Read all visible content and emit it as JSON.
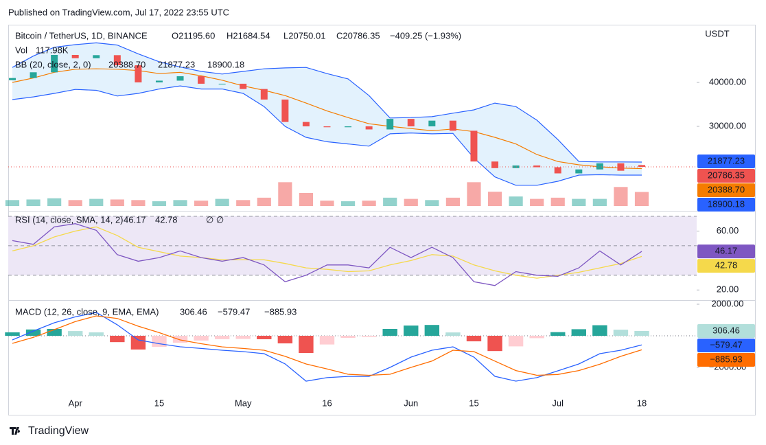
{
  "header": "Published on TradingView.com, Jul 17, 2022 23:55 UTC",
  "footer": "TradingView",
  "chart_data": [
    {
      "type": "candlestick",
      "title": "Bitcoin / TetherUS, 1D, BINANCE",
      "ohlc_legend": [
        "O21195.60",
        "H21684.54",
        "L20750.01",
        "C20786.35",
        "−409.25 (−1.93%)"
      ],
      "unit": "USDT",
      "categories": [
        null,
        null,
        null,
        "Apr",
        null,
        null,
        null,
        "15",
        null,
        null,
        null,
        "May",
        null,
        null,
        null,
        "16",
        null,
        null,
        null,
        "Jun",
        null,
        null,
        "15",
        null,
        null,
        null,
        "Jul",
        null,
        null,
        null,
        "18"
      ],
      "open": [
        40500,
        41000,
        42300,
        46250,
        45500,
        46200,
        43900,
        40000,
        40400,
        41400,
        39700,
        39700,
        38500,
        36100,
        31000,
        30000,
        29800,
        30000,
        29300,
        31700,
        30000,
        31300,
        29000,
        22000,
        20500,
        21100,
        20700,
        19300,
        20200,
        21600,
        21195.6
      ],
      "close": [
        41000,
        42300,
        46250,
        45500,
        46200,
        43900,
        40000,
        40400,
        41400,
        39700,
        39700,
        38500,
        36100,
        31000,
        30000,
        29800,
        30000,
        29300,
        31700,
        30000,
        31300,
        29000,
        22000,
        20500,
        21100,
        20700,
        19300,
        20200,
        21600,
        19900,
        20786.35
      ],
      "up_color": "#26a69a",
      "down_color": "#ef5350",
      "ylim": [
        11875,
        52500
      ],
      "yticks": [
        {
          "value": 40000,
          "label": "40000.00"
        },
        {
          "value": 30000,
          "label": "30000.00"
        }
      ],
      "volume": {
        "name": "Vol",
        "label": "117.98K",
        "ylim": [
          0,
          1500000
        ],
        "values": [
          50000,
          55000,
          65000,
          50000,
          60000,
          55000,
          50000,
          40000,
          50000,
          45000,
          60000,
          50000,
          70000,
          200000,
          110000,
          45000,
          40000,
          45000,
          70000,
          60000,
          50000,
          70000,
          200000,
          120000,
          80000,
          60000,
          70000,
          60000,
          60000,
          160000,
          117980
        ]
      },
      "bb": {
        "name": "BB (20, close, 2, 0)",
        "fill": "#e3f2fd",
        "series": [
          {
            "label": "20388.70",
            "color": "#f57c00",
            "values": [
              40000,
              41000,
              42300,
              43000,
              43100,
              43000,
              42700,
              42000,
              42300,
              41500,
              40500,
              39200,
              38200,
              37000,
              35300,
              33500,
              32000,
              30600,
              30000,
              29500,
              29000,
              29400,
              28800,
              27500,
              26000,
              23600,
              22000,
              21250,
              20800,
              20500,
              20388.7
            ]
          },
          {
            "label": "21877.23",
            "color": "#2962ff",
            "values": [
              43400,
              46000,
              48000,
              48600,
              49000,
              48500,
              46500,
              44700,
              43500,
              42500,
              41900,
              42500,
              43100,
              43300,
              43400,
              42000,
              40800,
              37000,
              31900,
              32000,
              32200,
              33000,
              33750,
              35300,
              34500,
              31400,
              27000,
              22000,
              21900,
              21900,
              21877.23
            ]
          },
          {
            "label": "18900.18",
            "color": "#2962ff",
            "values": [
              36100,
              36700,
              37500,
              38400,
              38200,
              36900,
              37500,
              38500,
              39200,
              38500,
              38500,
              37500,
              34500,
              30000,
              27500,
              26500,
              26000,
              25500,
              28300,
              28500,
              28300,
              28400,
              22800,
              18500,
              16600,
              16600,
              17500,
              18900,
              19000,
              18900,
              18900.18
            ]
          }
        ]
      }
    },
    {
      "type": "line",
      "name": "RSI (14, close, SMA, 14, 2)",
      "extra": "∅ ∅",
      "ylim": [
        15,
        70
      ],
      "yticks": [
        {
          "value": 60,
          "label": "60.00"
        },
        {
          "value": 20,
          "label": "20.00"
        }
      ],
      "levels": [
        70,
        50,
        30
      ],
      "band_color": "#ede7f6",
      "series": [
        {
          "label": "46.17",
          "color": "#7e57c2",
          "values": [
            53.5,
            51,
            62.8,
            65,
            60.5,
            44,
            39.5,
            42,
            46.5,
            42,
            39.5,
            42,
            37,
            25.6,
            30,
            37,
            37,
            35,
            49,
            42,
            49,
            42,
            25.6,
            23,
            32.5,
            30,
            29.3,
            35,
            46.5,
            37,
            46.17
          ]
        },
        {
          "label": "42.78",
          "color": "#f5d94b",
          "values": [
            46.5,
            50,
            56,
            60,
            62.8,
            57,
            49,
            46,
            43,
            42,
            40.5,
            40.5,
            40.5,
            38,
            35,
            34,
            32.5,
            33,
            37,
            40,
            44,
            43,
            37,
            33,
            30,
            28,
            30,
            32,
            35,
            38,
            42.78
          ]
        }
      ]
    },
    {
      "type": "macd",
      "name": "MACD (12, 26, close, 9, EMA, EMA)",
      "ylim": [
        -3740,
        2130
      ],
      "yticks": [
        {
          "value": 2000,
          "label": "2000.00"
        },
        {
          "value": -2000,
          "label": "−2000.00"
        }
      ],
      "histogram": {
        "label": "306.46",
        "colors": [
          "#26a69a",
          "#b2dfdb",
          "#ffcdd2",
          "#ef5350"
        ],
        "values": [
          220,
          400,
          436,
          300,
          218,
          -400,
          -868,
          -700,
          -436,
          -300,
          -213,
          -200,
          -217,
          -480,
          -1087,
          -550,
          -135,
          -70,
          435,
          650,
          687,
          213,
          -350,
          -965,
          -670,
          -150,
          233,
          417,
          670,
          387,
          306.46
        ]
      },
      "series": [
        {
          "label": "−579.47",
          "color": "#2962ff",
          "values": [
            -260,
            300,
            826,
            1200,
            1478,
            700,
            -260,
            -500,
            -696,
            -800,
            -913,
            -1000,
            -1130,
            -1780,
            -2870,
            -2650,
            -2570,
            -2570,
            -2000,
            -1350,
            -913,
            -700,
            -1350,
            -2565,
            -2870,
            -2650,
            -2217,
            -1783,
            -1130,
            -913,
            -579.47
          ]
        },
        {
          "label": "−885.93",
          "color": "#ff6d00",
          "values": [
            -480,
            -100,
            390,
            900,
            1260,
            1100,
            608,
            200,
            -260,
            -500,
            -700,
            -800,
            -913,
            -1300,
            -1783,
            -2100,
            -2435,
            -2500,
            -2435,
            -2000,
            -1600,
            -913,
            -1000,
            -1600,
            -2200,
            -2500,
            -2450,
            -2200,
            -1800,
            -1300,
            -885.93
          ]
        }
      ]
    }
  ]
}
